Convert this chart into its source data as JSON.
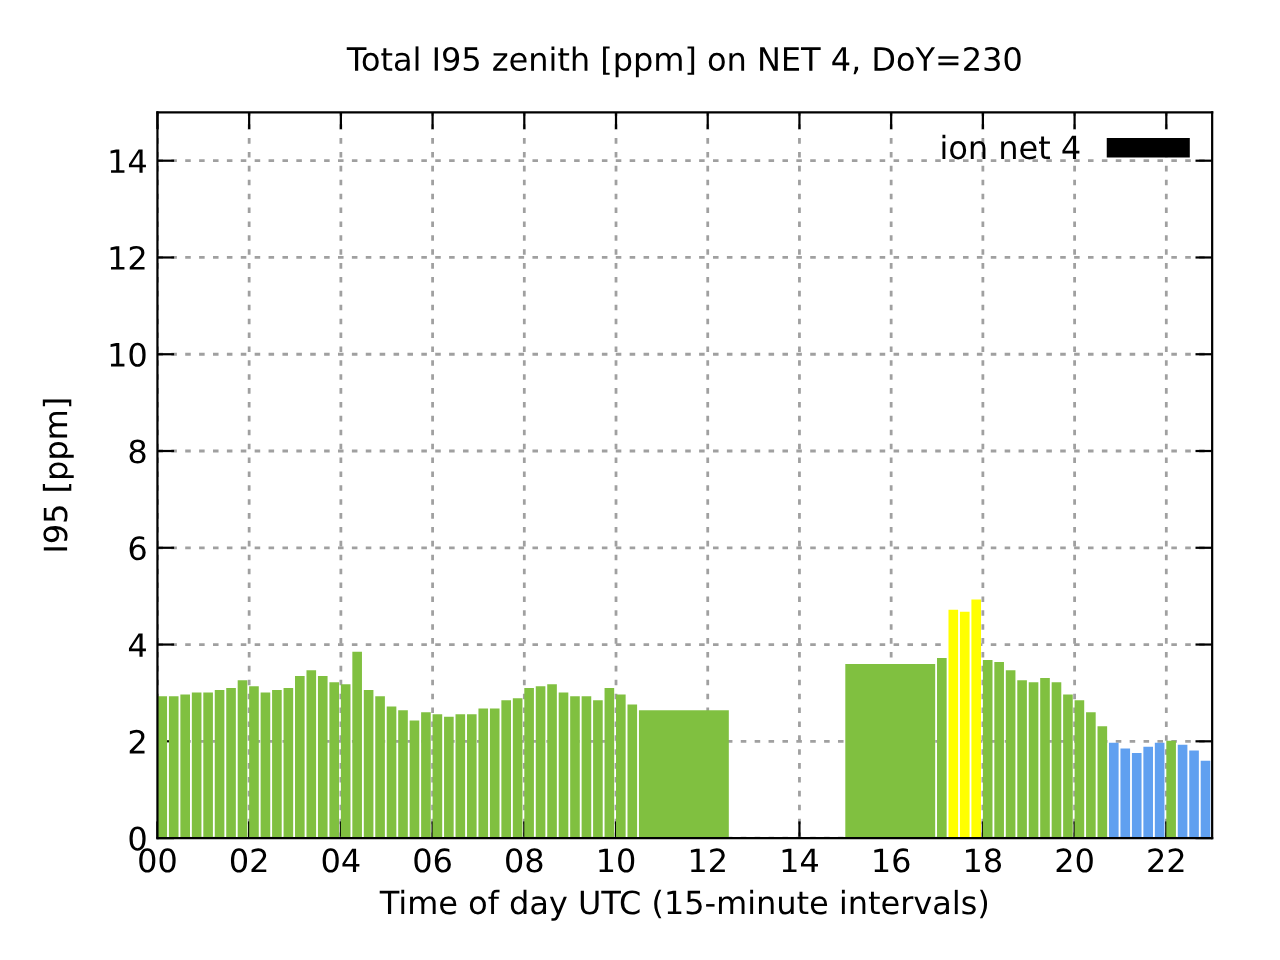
{
  "chart_data": {
    "type": "histogram",
    "title": "Total I95 zenith [ppm] on NET 4, DoY=230",
    "xlabel": "Time of day UTC (15-minute intervals)",
    "ylabel": "I95 [ppm]",
    "bins": [
      0,
      0.25,
      0.5,
      0.75,
      1,
      1.25,
      1.5,
      1.75,
      2,
      2.25,
      2.5,
      2.75,
      3,
      3.25,
      3.5,
      3.75,
      4,
      4.25,
      4.5,
      4.75,
      5,
      5.25,
      5.5,
      5.75,
      6,
      6.25,
      6.5,
      6.75,
      7,
      7.25,
      7.5,
      7.75,
      8,
      8.25,
      8.5,
      8.75,
      9,
      9.25,
      9.5,
      9.75,
      10,
      10.25,
      10.5,
      12.5,
      15,
      17,
      17.25,
      17.5,
      17.75,
      18,
      18.25,
      18.5,
      18.75,
      19,
      19.25,
      19.5,
      19.75,
      20,
      20.25,
      20.5,
      20.75,
      21,
      21.25,
      21.5,
      21.75,
      22,
      22.25,
      22.5,
      22.75,
      23
    ],
    "series": [
      {
        "name": "ion net 4",
        "color": "#000000",
        "values": [
          2.93,
          2.93,
          2.97,
          3.01,
          3.01,
          3.06,
          3.1,
          3.26,
          3.14,
          3.01,
          3.06,
          3.1,
          3.35,
          3.47,
          3.35,
          3.22,
          3.18,
          3.85,
          3.06,
          2.93,
          2.72,
          2.64,
          2.43,
          2.6,
          2.56,
          2.51,
          2.56,
          2.56,
          2.68,
          2.68,
          2.85,
          2.89,
          3.1,
          3.14,
          3.18,
          3.01,
          2.93,
          2.93,
          2.85,
          3.1,
          2.97,
          2.76,
          2.64,
          null,
          3.6,
          3.72,
          4.72,
          4.68,
          4.93,
          3.68,
          3.64,
          3.47,
          3.26,
          3.22,
          3.31,
          3.22,
          2.97,
          2.85,
          2.6,
          2.31,
          1.97,
          1.85,
          1.76,
          1.89,
          1.97,
          2.01,
          1.93,
          1.81,
          1.6
        ],
        "colors": [
          "#80c040",
          "#80c040",
          "#80c040",
          "#80c040",
          "#80c040",
          "#80c040",
          "#80c040",
          "#80c040",
          "#80c040",
          "#80c040",
          "#80c040",
          "#80c040",
          "#80c040",
          "#80c040",
          "#80c040",
          "#80c040",
          "#80c040",
          "#80c040",
          "#80c040",
          "#80c040",
          "#80c040",
          "#80c040",
          "#80c040",
          "#80c040",
          "#80c040",
          "#80c040",
          "#80c040",
          "#80c040",
          "#80c040",
          "#80c040",
          "#80c040",
          "#80c040",
          "#80c040",
          "#80c040",
          "#80c040",
          "#80c040",
          "#80c040",
          "#80c040",
          "#80c040",
          "#80c040",
          "#80c040",
          "#80c040",
          "#80c040",
          null,
          "#80c040",
          "#80c040",
          "#ffff00",
          "#ffff00",
          "#ffff00",
          "#80c040",
          "#80c040",
          "#80c040",
          "#80c040",
          "#80c040",
          "#80c040",
          "#80c040",
          "#80c040",
          "#80c040",
          "#80c040",
          "#80c040",
          "#60a0f0",
          "#60a0f0",
          "#60a0f0",
          "#60a0f0",
          "#60a0f0",
          "#80c040",
          "#60a0f0",
          "#60a0f0",
          "#60a0f0"
        ]
      }
    ],
    "xlim": [
      0,
      23
    ],
    "xticks": [
      {
        "value": 0,
        "label": "00"
      },
      {
        "value": 2,
        "label": "02"
      },
      {
        "value": 4,
        "label": "04"
      },
      {
        "value": 6,
        "label": "06"
      },
      {
        "value": 8,
        "label": "08"
      },
      10,
      12,
      14,
      16,
      18,
      20,
      22
    ],
    "ylim": [
      0,
      15
    ],
    "yticks": [
      0,
      2,
      4,
      6,
      8,
      10,
      12,
      14
    ],
    "grid": true,
    "legend": "top right"
  }
}
